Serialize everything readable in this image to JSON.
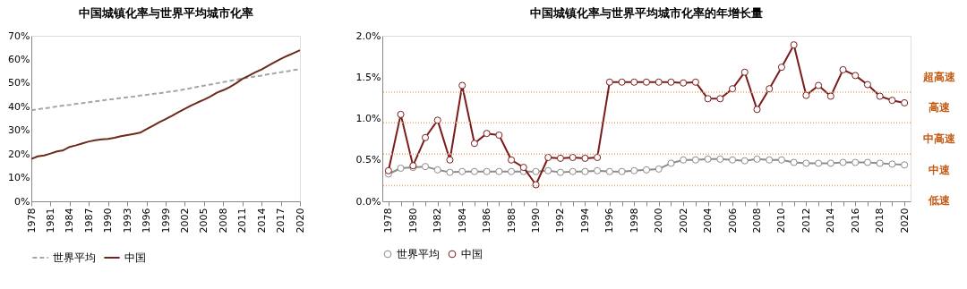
{
  "chart_data": [
    {
      "type": "line",
      "title": "中国城镇化率与世界平均城市化率",
      "x": [
        1978,
        1979,
        1980,
        1981,
        1982,
        1983,
        1984,
        1985,
        1986,
        1987,
        1988,
        1989,
        1990,
        1991,
        1992,
        1993,
        1994,
        1995,
        1996,
        1997,
        1998,
        1999,
        2000,
        2001,
        2002,
        2003,
        2004,
        2005,
        2006,
        2007,
        2008,
        2009,
        2010,
        2011,
        2012,
        2013,
        2014,
        2015,
        2016,
        2017,
        2018,
        2019,
        2020
      ],
      "xlim": [
        1978,
        2020
      ],
      "xticks": [
        1978,
        1981,
        1984,
        1987,
        1990,
        1993,
        1996,
        1999,
        2002,
        2005,
        2008,
        2011,
        2014,
        2017,
        2020
      ],
      "ylim": [
        0,
        70
      ],
      "yticks": [
        {
          "value": 0,
          "label": "0%"
        },
        {
          "value": 10,
          "label": "10%"
        },
        {
          "value": 20,
          "label": "20%"
        },
        {
          "value": 30,
          "label": "30%"
        },
        {
          "value": 40,
          "label": "40%"
        },
        {
          "value": 50,
          "label": "50%"
        },
        {
          "value": 60,
          "label": "60%"
        },
        {
          "value": 70,
          "label": "70%"
        }
      ],
      "grid": false,
      "legend": "bottom",
      "marker": "none",
      "series": [
        {
          "name": "中国",
          "color": "#6b2a1a",
          "line_style": "solid",
          "values": [
            17.9,
            19.0,
            19.4,
            20.2,
            21.1,
            21.6,
            23.0,
            23.7,
            24.5,
            25.3,
            25.8,
            26.2,
            26.4,
            26.9,
            27.5,
            28.0,
            28.5,
            29.0,
            30.5,
            31.9,
            33.4,
            34.8,
            36.2,
            37.7,
            39.1,
            40.5,
            41.8,
            43.0,
            44.3,
            45.9,
            47.0,
            48.3,
            49.9,
            51.8,
            53.1,
            54.5,
            55.8,
            57.3,
            58.8,
            60.2,
            61.5,
            62.7,
            63.9
          ]
        },
        {
          "name": "世界平均",
          "color": "#a6a6a6",
          "line_style": "dashed",
          "values": [
            38.5,
            38.9,
            39.3,
            39.7,
            40.1,
            40.5,
            40.8,
            41.2,
            41.5,
            41.9,
            42.3,
            42.6,
            43.0,
            43.3,
            43.7,
            44.0,
            44.3,
            44.7,
            45.0,
            45.4,
            45.7,
            46.1,
            46.5,
            46.9,
            47.4,
            47.9,
            48.4,
            48.9,
            49.4,
            49.9,
            50.4,
            50.9,
            51.4,
            51.9,
            52.3,
            52.8,
            53.2,
            53.7,
            54.1,
            54.6,
            55.0,
            55.5,
            55.9
          ]
        }
      ]
    },
    {
      "type": "line",
      "title": "中国城镇化率与世界平均城市化率的年增长量",
      "categories": [
        "1978",
        null,
        "1980",
        null,
        "1982",
        null,
        "1984",
        null,
        "1986",
        null,
        "1988",
        null,
        "1990",
        null,
        "1992",
        null,
        "1994",
        null,
        "1996",
        null,
        "1998",
        null,
        "2000",
        null,
        "2002",
        null,
        "2004",
        null,
        "2006",
        null,
        "2008",
        null,
        "2010",
        null,
        "2012",
        null,
        "2014",
        null,
        "2016",
        null,
        "2018",
        null,
        "2020"
      ],
      "ylim": [
        0,
        2
      ],
      "yticks": [
        {
          "value": 0,
          "label": "0.0%"
        },
        {
          "value": 0.5,
          "label": "0.5%"
        },
        {
          "value": 1,
          "label": "1.0%"
        },
        {
          "value": 1.5,
          "label": "1.5%"
        },
        {
          "value": 2,
          "label": "2.0%"
        }
      ],
      "grid": false,
      "legend": "bottom",
      "marker": "circle",
      "series": [
        {
          "name": "中国",
          "color": "#7b1c1c",
          "line_style": "solid",
          "values": [
            0.37,
            1.05,
            0.43,
            0.77,
            0.98,
            0.5,
            1.4,
            0.7,
            0.82,
            0.8,
            0.5,
            0.41,
            0.2,
            0.53,
            0.52,
            0.53,
            0.52,
            0.53,
            1.44,
            1.44,
            1.44,
            1.44,
            1.44,
            1.44,
            1.43,
            1.44,
            1.24,
            1.24,
            1.36,
            1.56,
            1.11,
            1.36,
            1.62,
            1.89,
            1.28,
            1.4,
            1.27,
            1.59,
            1.52,
            1.41,
            1.27,
            1.22,
            1.19
          ]
        },
        {
          "name": "世界平均",
          "color": "#8c8c8c",
          "line_style": "solid",
          "values": [
            0.33,
            0.4,
            0.41,
            0.42,
            0.38,
            0.35,
            0.36,
            0.36,
            0.36,
            0.36,
            0.36,
            0.36,
            0.36,
            0.37,
            0.35,
            0.36,
            0.36,
            0.37,
            0.36,
            0.36,
            0.37,
            0.38,
            0.39,
            0.46,
            0.5,
            0.5,
            0.51,
            0.51,
            0.5,
            0.49,
            0.51,
            0.5,
            0.5,
            0.47,
            0.46,
            0.46,
            0.46,
            0.47,
            0.47,
            0.47,
            0.46,
            0.45,
            0.44
          ]
        }
      ],
      "ref_lines": [
        {
          "axis": "y",
          "value": 1.32,
          "color": "#f4a460",
          "line_style": "dotted"
        },
        {
          "axis": "y",
          "value": 0.95,
          "color": "#f4a460",
          "line_style": "dotted"
        },
        {
          "axis": "y",
          "value": 0.57,
          "color": "#f4a460",
          "line_style": "dotted"
        },
        {
          "axis": "y",
          "value": 0.19,
          "color": "#f4a460",
          "line_style": "dotted"
        }
      ],
      "annotations": [
        "超高速",
        "高速",
        "中高速",
        "中速",
        "低速"
      ]
    }
  ]
}
